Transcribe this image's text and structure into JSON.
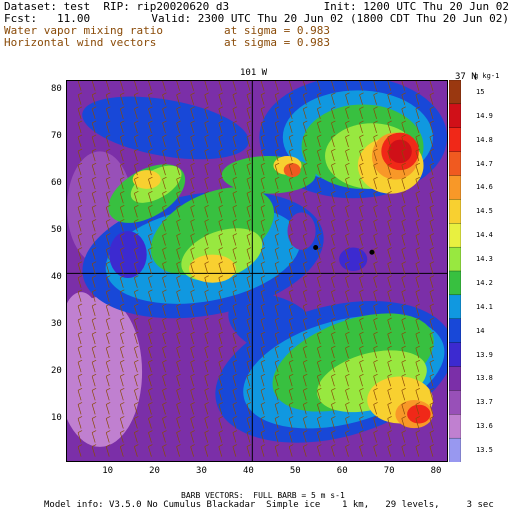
{
  "header": {
    "dataset": "Dataset: test  RIP: rip20020620 d3",
    "init": "Init: 1200 UTC Thu 20 Jun 02",
    "fcst": "Fcst:   11.00",
    "valid": "Valid: 2300 UTC Thu 20 Jun 02 (1800 CDT Thu 20 Jun 02)",
    "field1": "Water vapor mixing ratio",
    "field1_level": "at sigma = 0.983",
    "field2": "Horizontal wind vectors",
    "field2_level": "at sigma = 0.983"
  },
  "map": {
    "top_label": "101 W",
    "right_label": "37 N",
    "x_ticks": [
      "10",
      "20",
      "30",
      "40",
      "50",
      "60",
      "70",
      "80"
    ],
    "y_ticks": [
      "10",
      "20",
      "30",
      "40",
      "50",
      "60",
      "70",
      "80"
    ],
    "x_range": [
      1,
      82
    ],
    "y_range": [
      1,
      82
    ],
    "crosshair_x": 40.5,
    "crosshair_y": 41,
    "markers": [
      [
        54,
        46.5
      ],
      [
        66,
        45.5
      ]
    ]
  },
  "colorbar": {
    "units": "g kg-1",
    "levels": [
      "15",
      "14.9",
      "14.8",
      "14.7",
      "14.6",
      "14.5",
      "14.4",
      "14.3",
      "14.2",
      "14.1",
      "14",
      "13.9",
      "13.8",
      "13.7",
      "13.6",
      "13.5"
    ],
    "colors": [
      "#9a3810",
      "#d01018",
      "#f02818",
      "#f05a20",
      "#f89828",
      "#f8d030",
      "#e8f040",
      "#98e840",
      "#38c040",
      "#1098e0",
      "#1848d8",
      "#3c2ad0",
      "#7b2fa8",
      "#9850b8",
      "#c080d0",
      "#9898f0"
    ]
  },
  "footer": {
    "barb_note": "BARB VECTORS:  FULL BARB = 5 m s-1",
    "model_info": "Model info: V3.5.0 No Cumulus Blackadar  Simple ice    1 km,   29 levels,     3 sec"
  }
}
